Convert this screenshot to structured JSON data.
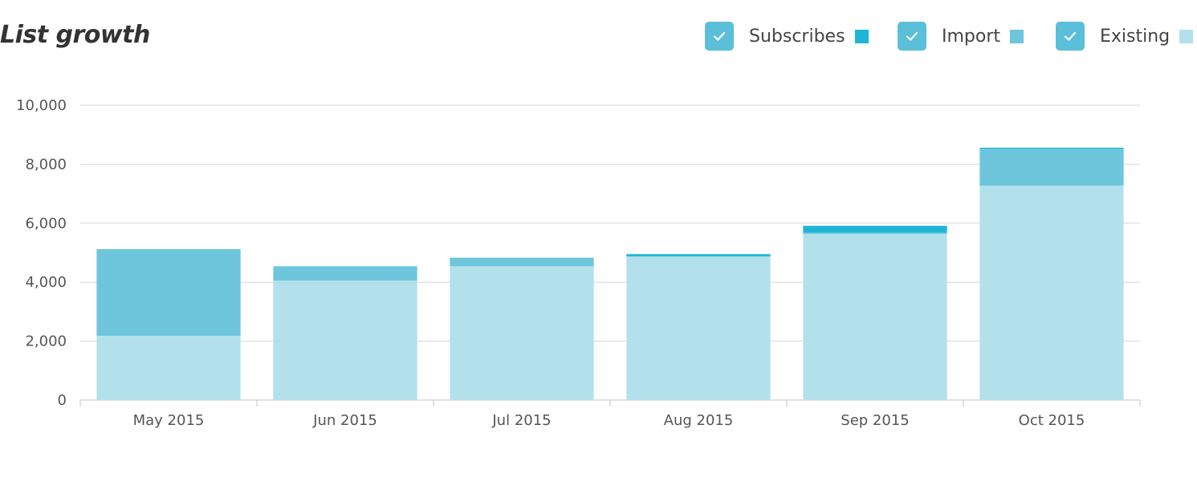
{
  "title": "List growth",
  "legend": [
    {
      "label": "Subscribes",
      "color": "#1fb5d6",
      "checked": true
    },
    {
      "label": "Import",
      "color": "#6ec6dd",
      "checked": true
    },
    {
      "label": "Existing",
      "color": "#b2e1ec",
      "checked": true
    }
  ],
  "chart_data": {
    "type": "bar",
    "stacked": true,
    "categories": [
      "May 2015",
      "Jun 2015",
      "Jul 2015",
      "Aug 2015",
      "Sep 2015",
      "Oct 2015"
    ],
    "series": [
      {
        "name": "Existing",
        "color": "#b2e1ec",
        "values": [
          2180,
          4050,
          4540,
          4870,
          5640,
          7270
        ]
      },
      {
        "name": "Import",
        "color": "#6ec6dd",
        "values": [
          2940,
          490,
          290,
          0,
          40,
          1250
        ]
      },
      {
        "name": "Subscribes",
        "color": "#1fb5d6",
        "values": [
          0,
          0,
          0,
          80,
          230,
          40
        ]
      }
    ],
    "y_ticks": [
      "0",
      "2,000",
      "4,000",
      "6,000",
      "8,000",
      "10,000"
    ],
    "ylim": [
      0,
      10000
    ],
    "grid": true,
    "legend_position": "top-right"
  }
}
